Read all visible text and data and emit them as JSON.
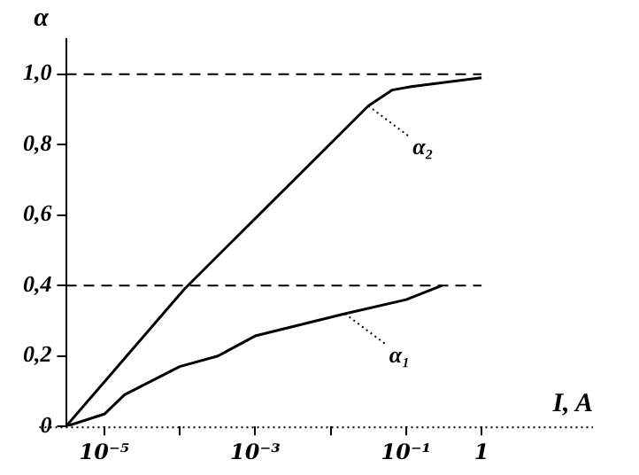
{
  "chart_data": {
    "type": "line",
    "xlabel": "I, A",
    "ylabel": "α",
    "log": "x",
    "xlim": [
      3.1e-06,
      30
    ],
    "xticks": [
      {
        "value": 1e-05,
        "label": "10⁻⁵"
      },
      {
        "value": 0.0001,
        "label": null
      },
      {
        "value": 0.001,
        "label": "10⁻³"
      },
      {
        "value": 0.01,
        "label": null
      },
      {
        "value": 0.1,
        "label": "10⁻¹"
      },
      {
        "value": 1,
        "label": "1"
      }
    ],
    "ylim": [
      0,
      1.1
    ],
    "yticks": [
      {
        "value": 0,
        "label": "0"
      },
      {
        "value": 0.2,
        "label": "0,2"
      },
      {
        "value": 0.4,
        "label": "0,4"
      },
      {
        "value": 0.6,
        "label": "0,6"
      },
      {
        "value": 0.8,
        "label": "0,8"
      },
      {
        "value": 1,
        "label": "1,0"
      }
    ],
    "series": [
      {
        "color": "#000000",
        "x": [
          3.1e-06,
          1e-05,
          1.86e-05,
          0.0001,
          0.00032,
          0.001,
          0.0155,
          0.1,
          0.3
        ],
        "values": [
          0,
          0.035,
          0.09,
          0.17,
          0.2,
          0.257,
          0.32,
          0.36,
          0.4
        ]
      },
      {
        "color": "#000000",
        "x": [
          3.1e-06,
          0.000115,
          0.0316,
          0.065,
          0.117,
          1
        ],
        "values": [
          0,
          0.39,
          0.91,
          0.955,
          0.965,
          0.99
        ]
      }
    ],
    "ref_lines": [
      {
        "axis": "y",
        "value": 1,
        "line_style": "dashed",
        "color": "#000000"
      },
      {
        "axis": "y",
        "value": 0.4,
        "line_style": "dashed",
        "color": "#000000"
      }
    ],
    "annotations": [
      {
        "text": "α₁",
        "x": 0.0155,
        "y": 0.32
      },
      {
        "text": "α₂",
        "x": 0.0316,
        "y": 0.91
      }
    ],
    "grid": false,
    "legend": false,
    "marker": "none",
    "line_style": "solid"
  }
}
